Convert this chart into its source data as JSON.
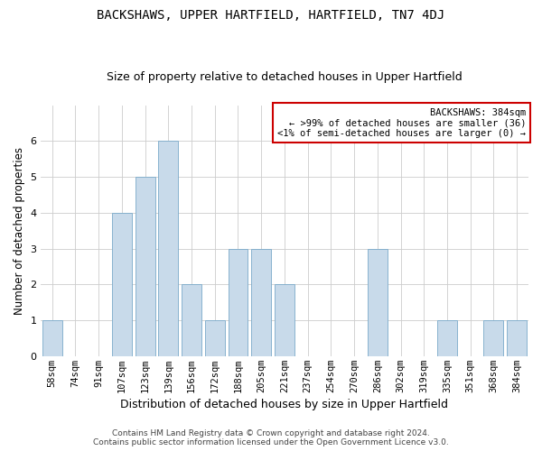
{
  "title": "BACKSHAWS, UPPER HARTFIELD, HARTFIELD, TN7 4DJ",
  "subtitle": "Size of property relative to detached houses in Upper Hartfield",
  "xlabel": "Distribution of detached houses by size in Upper Hartfield",
  "ylabel": "Number of detached properties",
  "footer_line1": "Contains HM Land Registry data © Crown copyright and database right 2024.",
  "footer_line2": "Contains public sector information licensed under the Open Government Licence v3.0.",
  "categories": [
    "58sqm",
    "74sqm",
    "91sqm",
    "107sqm",
    "123sqm",
    "139sqm",
    "156sqm",
    "172sqm",
    "188sqm",
    "205sqm",
    "221sqm",
    "237sqm",
    "254sqm",
    "270sqm",
    "286sqm",
    "302sqm",
    "319sqm",
    "335sqm",
    "351sqm",
    "368sqm",
    "384sqm"
  ],
  "values": [
    1,
    0,
    0,
    4,
    5,
    6,
    2,
    1,
    3,
    3,
    2,
    0,
    0,
    0,
    3,
    0,
    0,
    1,
    0,
    1,
    1
  ],
  "bar_color": "#c8daea",
  "bar_edge_color": "#7aaaca",
  "annotation_box_text": "BACKSHAWS: 384sqm\n← >99% of detached houses are smaller (36)\n<1% of semi-detached houses are larger (0) →",
  "annotation_box_edge_color": "#cc0000",
  "annotation_box_face_color": "#ffffff",
  "ylim": [
    0,
    7
  ],
  "yticks": [
    0,
    1,
    2,
    3,
    4,
    5,
    6
  ],
  "grid_color": "#cccccc",
  "background_color": "#ffffff",
  "title_fontsize": 10,
  "subtitle_fontsize": 9,
  "xlabel_fontsize": 9,
  "ylabel_fontsize": 8.5,
  "tick_fontsize": 7.5,
  "footer_fontsize": 6.5,
  "annotation_fontsize": 7.5
}
